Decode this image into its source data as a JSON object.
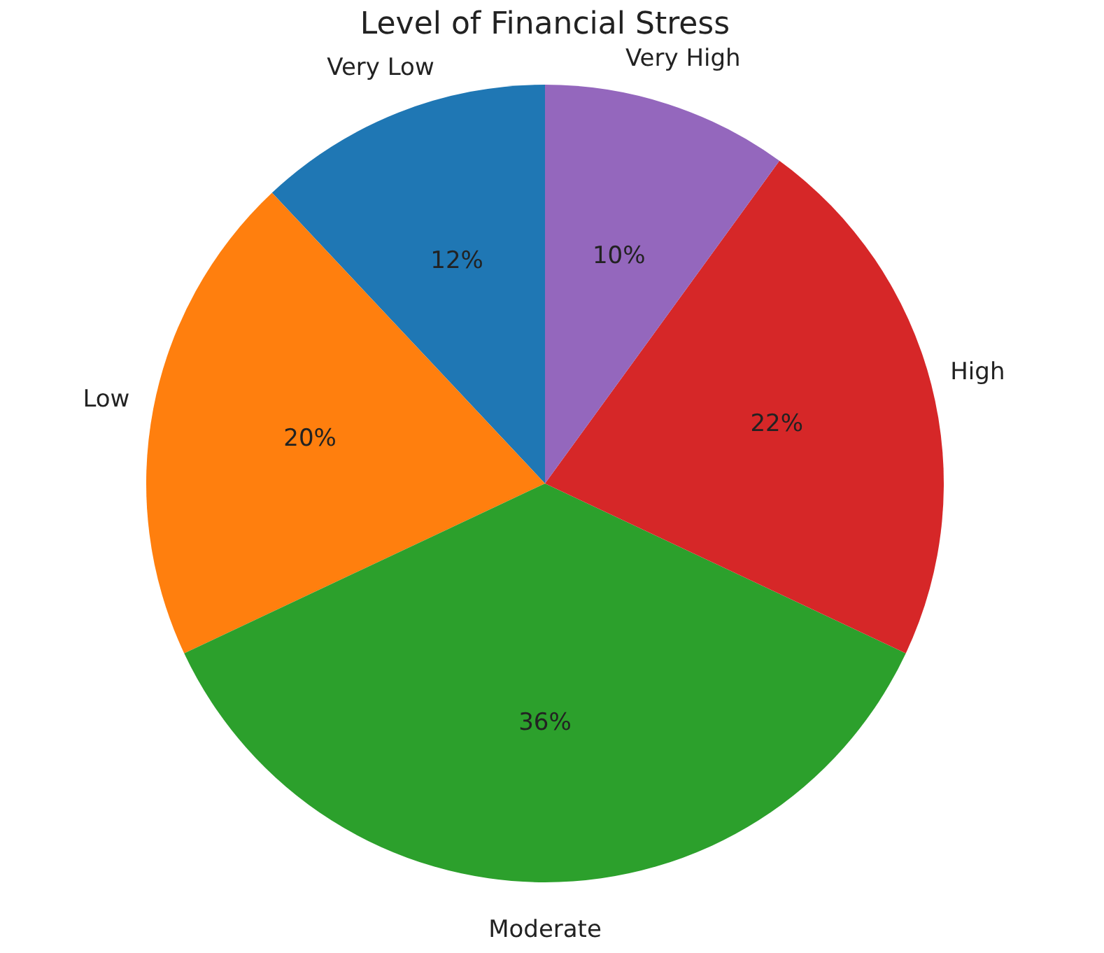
{
  "chart_data": {
    "type": "pie",
    "title": "Level of Financial Stress",
    "categories": [
      "Very Low",
      "Low",
      "Moderate",
      "High",
      "Very High"
    ],
    "values": [
      12,
      20,
      36,
      22,
      10
    ],
    "colors": [
      "#1f77b4",
      "#ff7f0e",
      "#2ca02c",
      "#d62728",
      "#9467bd"
    ],
    "value_labels": [
      "12%",
      "20%",
      "36%",
      "22%",
      "10%"
    ],
    "legend": false
  }
}
